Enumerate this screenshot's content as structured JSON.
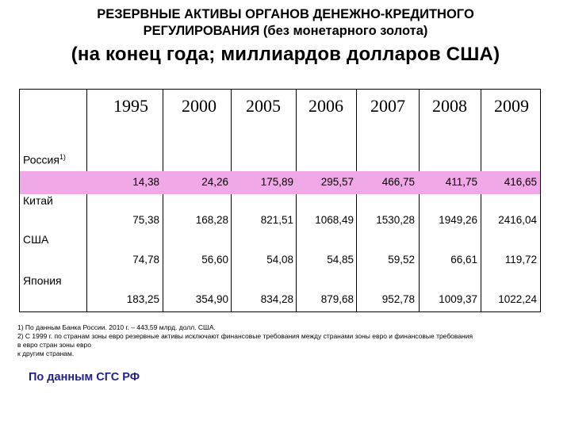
{
  "title": {
    "line1": "РЕЗЕРВНЫЕ АКТИВЫ ОРГАНОВ ДЕНЕЖНО-КРЕДИТНОГО",
    "line2": "РЕГУЛИРОВАНИЯ (без монетарного золота)",
    "subtitle": "(на конец года; миллиардов долларов США)"
  },
  "table": {
    "years": [
      "1995",
      "2000",
      "2005",
      "2006",
      "2007",
      "2008",
      "2009"
    ],
    "rows": [
      {
        "label": "Россия",
        "note": "1)",
        "values": [
          "14,38",
          "24,26",
          "175,89",
          "295,57",
          "466,75",
          "411,75",
          "416,65"
        ]
      },
      {
        "label": "Китай",
        "note": "",
        "values": [
          "75,38",
          "168,28",
          "821,51",
          "1068,49",
          "1530,28",
          "1949,26",
          "2416,04"
        ]
      },
      {
        "label": "США",
        "note": "",
        "values": [
          "74,78",
          "56,60",
          "54,08",
          "54,85",
          "59,52",
          "66,61",
          "119,72"
        ]
      },
      {
        "label": "Япония",
        "note": "",
        "values": [
          "183,25",
          "354,90",
          "834,28",
          "879,68",
          "952,78",
          "1009,37",
          "1022,24"
        ]
      }
    ],
    "highlight_color": "#f0a9e6"
  },
  "footnotes": {
    "fn1": "1) По данным Банка России. 2010 г. – 443,59 млрд. долл. США.",
    "fn2a": "2) С 1999 г. по странам зоны евро резервные активы исключают финансовые требования между странами зоны евро и финансовые требования",
    "fn2b": "в евро стран зоны евро",
    "fn2c": "к другим странам."
  },
  "source": "По данным СГС РФ"
}
